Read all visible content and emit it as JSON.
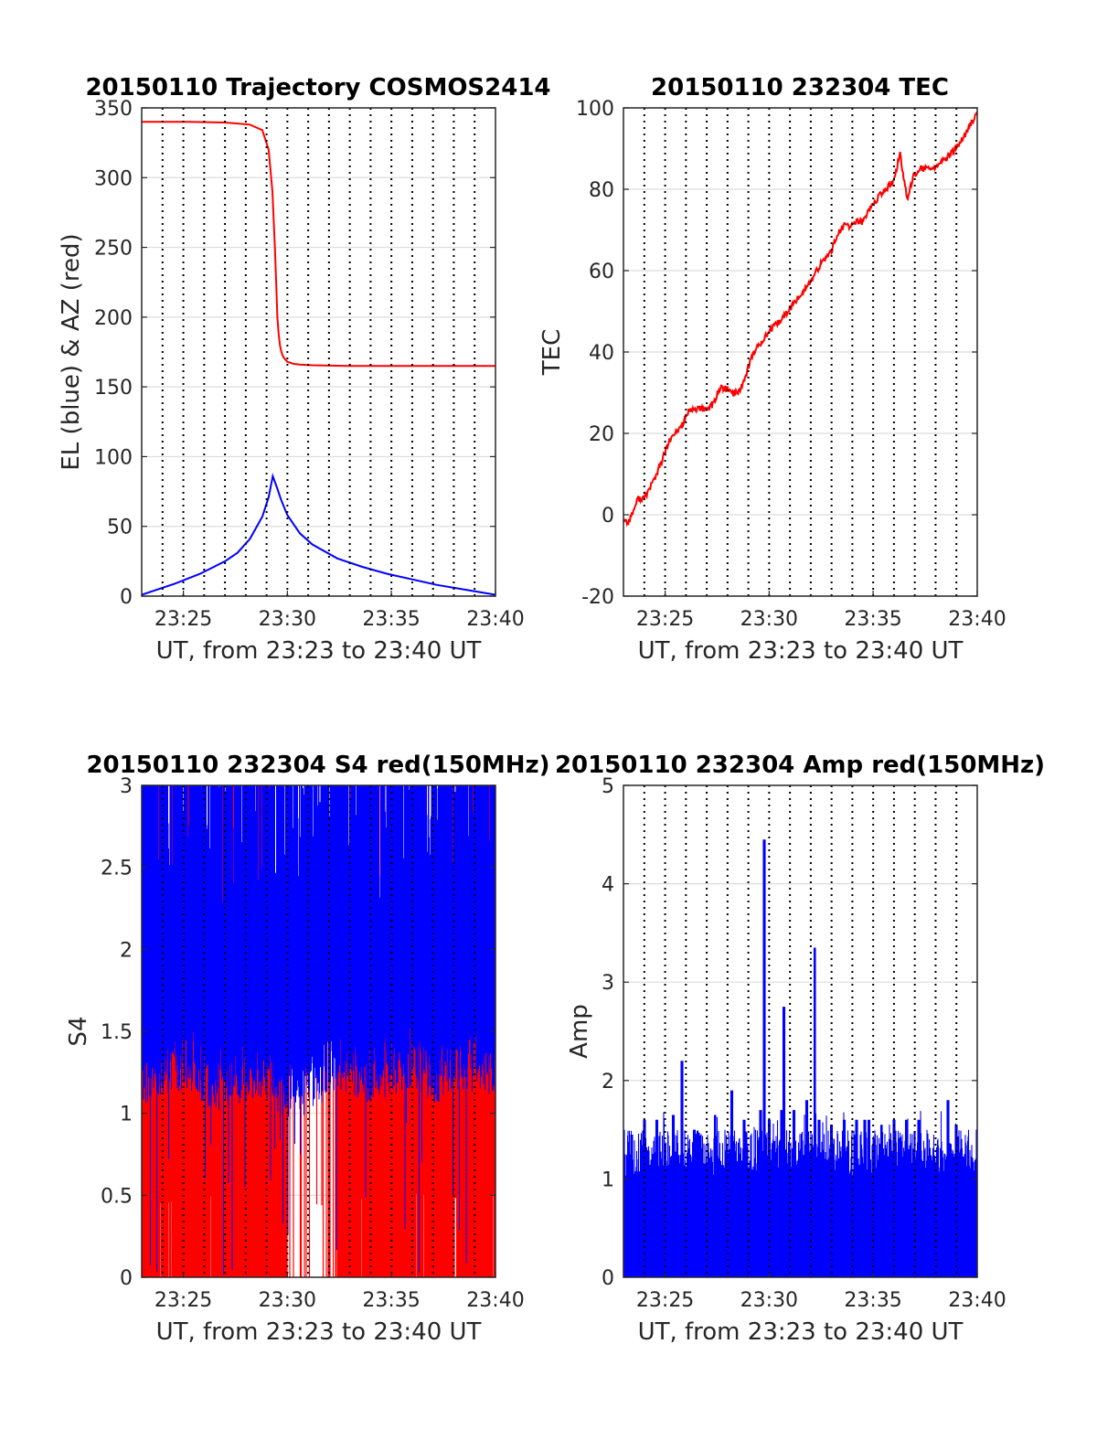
{
  "chart_data": [
    {
      "type": "line",
      "title": "20150110 Trajectory COSMOS2414",
      "xlabel": "UT, from 23:23 to 23:40 UT",
      "ylabel": "EL (blue) & AZ (red)",
      "xlim": [
        23.3833,
        23.6667
      ],
      "ylim": [
        0,
        350
      ],
      "xticks": [
        23.4167,
        23.5,
        23.5833,
        23.6667
      ],
      "xtick_labels": [
        "23:25",
        "23:30",
        "23:35",
        "23:40"
      ],
      "yticks": [
        0,
        50,
        100,
        150,
        200,
        250,
        300,
        350
      ],
      "ytick_labels": [
        "0",
        "50",
        "100",
        "150",
        "200",
        "250",
        "300",
        "350"
      ],
      "grid": true,
      "series": [
        {
          "color": "#ff0000",
          "x": [
            23.3833,
            23.42,
            23.45,
            23.47,
            23.48,
            23.485,
            23.488,
            23.49,
            23.491,
            23.492,
            23.493,
            23.494,
            23.495,
            23.496,
            23.497,
            23.5,
            23.505,
            23.51,
            23.52,
            23.55,
            23.6,
            23.6667
          ],
          "y": [
            340,
            340,
            339.5,
            338,
            334,
            320,
            290,
            250,
            225,
            200,
            188,
            180,
            176,
            173,
            171,
            168,
            166.5,
            166,
            165.5,
            165,
            165,
            165
          ]
        },
        {
          "color": "#0000ff",
          "x": [
            23.3833,
            23.41,
            23.43,
            23.45,
            23.46,
            23.47,
            23.48,
            23.485,
            23.4883,
            23.492,
            23.495,
            23.5,
            23.51,
            23.52,
            23.54,
            23.56,
            23.58,
            23.6,
            23.62,
            23.64,
            23.6667
          ],
          "y": [
            1,
            9,
            16,
            25,
            31,
            41,
            57,
            71,
            86,
            77,
            69,
            58,
            45,
            37,
            27,
            21,
            16,
            12,
            8,
            5,
            1
          ]
        }
      ]
    },
    {
      "type": "line",
      "title": "20150110 232304 TEC",
      "xlabel": "UT, from 23:23 to 23:40 UT",
      "ylabel": "TEC",
      "xlim": [
        23.3833,
        23.6667
      ],
      "ylim": [
        -20,
        100
      ],
      "xticks": [
        23.4167,
        23.5,
        23.5833,
        23.6667
      ],
      "xtick_labels": [
        "23:25",
        "23:30",
        "23:35",
        "23:40"
      ],
      "yticks": [
        -20,
        0,
        20,
        40,
        60,
        80,
        100
      ],
      "ytick_labels": [
        "-20",
        "0",
        "20",
        "40",
        "60",
        "80",
        "100"
      ],
      "grid": true,
      "series": [
        {
          "color": "#ff0000",
          "x": [
            23.3833,
            23.3867,
            23.39,
            23.395,
            23.4,
            23.405,
            23.41,
            23.415,
            23.42,
            23.43,
            23.435,
            23.44,
            23.445,
            23.45,
            23.455,
            23.46,
            23.465,
            23.47,
            23.475,
            23.48,
            23.485,
            23.49,
            23.495,
            23.5,
            23.51,
            23.52,
            23.53,
            23.535,
            23.54,
            23.545,
            23.55,
            23.555,
            23.56,
            23.565,
            23.57,
            23.575,
            23.58,
            23.585,
            23.59,
            23.6,
            23.605,
            23.608,
            23.611,
            23.615,
            23.62,
            23.63,
            23.64,
            23.65,
            23.66,
            23.6667
          ],
          "y": [
            -1,
            -2,
            0,
            4,
            4,
            7,
            10,
            14,
            18,
            22,
            25,
            26,
            26,
            26,
            27,
            31,
            31,
            30,
            30,
            33,
            38,
            41,
            43,
            45,
            48,
            52,
            56,
            58,
            61,
            63,
            65,
            69,
            71,
            71,
            72,
            72,
            75,
            77,
            79,
            82,
            89,
            82,
            77,
            83,
            85,
            85,
            87,
            90,
            95,
            99
          ]
        }
      ]
    },
    {
      "type": "line",
      "title": "20150110 232304 S4 red(150MHz)",
      "xlabel": "UT, from 23:23 to 23:40 UT",
      "ylabel": "S4",
      "xlim": [
        23.3833,
        23.6667
      ],
      "ylim": [
        0,
        3
      ],
      "xticks": [
        23.4167,
        23.5,
        23.5833,
        23.6667
      ],
      "xtick_labels": [
        "23:25",
        "23:30",
        "23:35",
        "23:40"
      ],
      "yticks": [
        0,
        0.5,
        1,
        1.5,
        2,
        2.5,
        3
      ],
      "ytick_labels": [
        "0",
        "0.5",
        "1",
        "1.5",
        "2",
        "2.5",
        "3"
      ],
      "grid": true,
      "series": [
        {
          "color": "#ff0000",
          "x": [
            23.3833,
            23.4,
            23.42,
            23.44,
            23.46,
            23.48,
            23.5,
            23.52,
            23.54,
            23.56,
            23.58,
            23.6,
            23.62,
            23.64,
            23.6667
          ],
          "y": [
            1.5,
            1.5,
            1.6,
            1.65,
            1.7,
            1.65,
            1.7,
            1.5,
            1.4,
            1.6,
            1.75,
            1.7,
            1.65,
            1.6,
            1.7
          ]
        },
        {
          "color": "#0000ff",
          "x": [
            23.3833,
            23.4,
            23.42,
            23.44,
            23.46,
            23.48,
            23.5,
            23.52,
            23.54,
            23.56,
            23.58,
            23.6,
            23.62,
            23.64,
            23.6667
          ],
          "y": [
            1.8,
            1.85,
            1.9,
            1.75,
            1.8,
            1.85,
            1.7,
            1.75,
            1.9,
            1.8,
            1.85,
            1.9,
            1.8,
            1.9,
            1.85
          ]
        }
      ]
    },
    {
      "type": "line",
      "title": "20150110 232304 Amp red(150MHz)",
      "xlabel": "UT, from 23:23 to 23:40 UT",
      "ylabel": "Amp",
      "xlim": [
        23.3833,
        23.6667
      ],
      "ylim": [
        0,
        5
      ],
      "xticks": [
        23.4167,
        23.5,
        23.5833,
        23.6667
      ],
      "xtick_labels": [
        "23:25",
        "23:30",
        "23:35",
        "23:40"
      ],
      "yticks": [
        0,
        1,
        2,
        3,
        4,
        5
      ],
      "ytick_labels": [
        "0",
        "1",
        "2",
        "3",
        "4",
        "5"
      ],
      "grid": true,
      "series": [
        {
          "color": "#0000ff",
          "x": [
            23.3833,
            23.39,
            23.4,
            23.41,
            23.4233,
            23.43,
            23.44,
            23.4567,
            23.47,
            23.48,
            23.4933,
            23.496,
            23.5,
            23.51,
            23.5117,
            23.52,
            23.53,
            23.5367,
            23.54,
            23.55,
            23.56,
            23.57,
            23.5767,
            23.58,
            23.59,
            23.6,
            23.61,
            23.62,
            23.6433,
            23.65,
            23.6667
          ],
          "y": [
            1.5,
            1.45,
            1.6,
            1.6,
            1.65,
            2.2,
            1.5,
            1.65,
            1.9,
            1.6,
            1.7,
            4.45,
            1.6,
            1.7,
            2.75,
            1.7,
            1.8,
            3.35,
            1.6,
            1.55,
            1.6,
            1.6,
            1.6,
            1.6,
            1.55,
            1.6,
            1.6,
            1.6,
            1.8,
            1.55,
            1.5
          ]
        }
      ]
    }
  ]
}
